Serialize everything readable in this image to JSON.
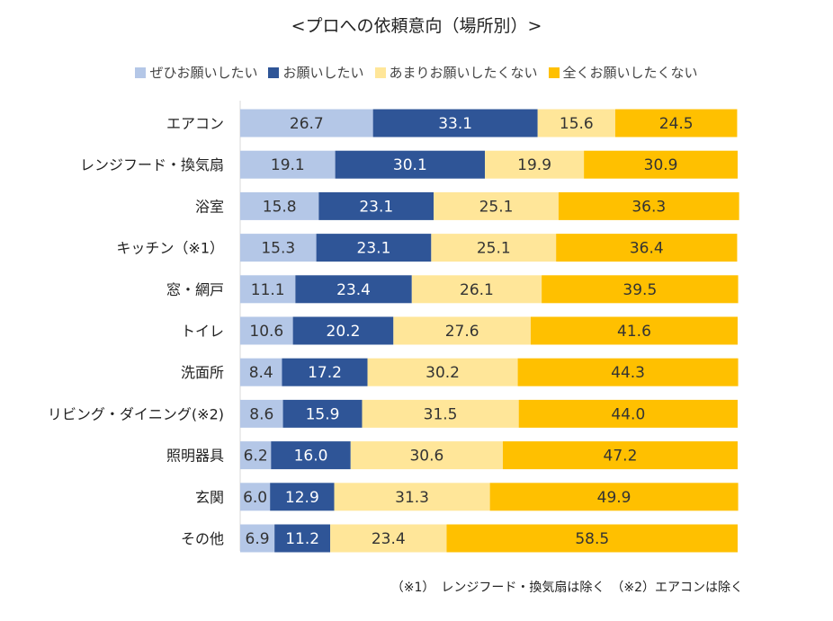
{
  "chart_data": {
    "type": "bar",
    "orientation": "horizontal",
    "stacked": true,
    "title": "<プロへの依頼意向（場所別）>",
    "categories": [
      "エアコン",
      "レンジフード・換気扇",
      "浴室",
      "キッチン（※1）",
      "窓・網戸",
      "トイレ",
      "洗面所",
      "リビング・ダイニング(※2)",
      "照明器具",
      "玄関",
      "その他"
    ],
    "series": [
      {
        "name": "ぜひお願いしたい",
        "color": "#b4c7e7",
        "label_color": "#333333",
        "values": [
          26.7,
          19.1,
          15.8,
          15.3,
          11.1,
          10.6,
          8.4,
          8.6,
          6.2,
          6.0,
          6.9
        ]
      },
      {
        "name": "お願いしたい",
        "color": "#2f5597",
        "label_color": "#ffffff",
        "values": [
          33.1,
          30.1,
          23.1,
          23.1,
          23.4,
          20.2,
          17.2,
          15.9,
          16.0,
          12.9,
          11.2
        ]
      },
      {
        "name": "あまりお願いしたくない",
        "color": "#ffe699",
        "label_color": "#333333",
        "values": [
          15.6,
          19.9,
          25.1,
          25.1,
          26.1,
          27.6,
          30.2,
          31.5,
          30.6,
          31.3,
          23.4
        ]
      },
      {
        "name": "全くお願いしたくない",
        "color": "#ffc000",
        "label_color": "#333333",
        "values": [
          24.5,
          30.9,
          36.3,
          36.4,
          39.5,
          41.6,
          44.3,
          44.0,
          47.2,
          49.9,
          58.5
        ]
      }
    ],
    "xlim": [
      0,
      100
    ],
    "grid": false,
    "legend_position": "top"
  },
  "footnote": "（※1）　レンジフード・換気扇は除く　（※2）エアコンは除く"
}
